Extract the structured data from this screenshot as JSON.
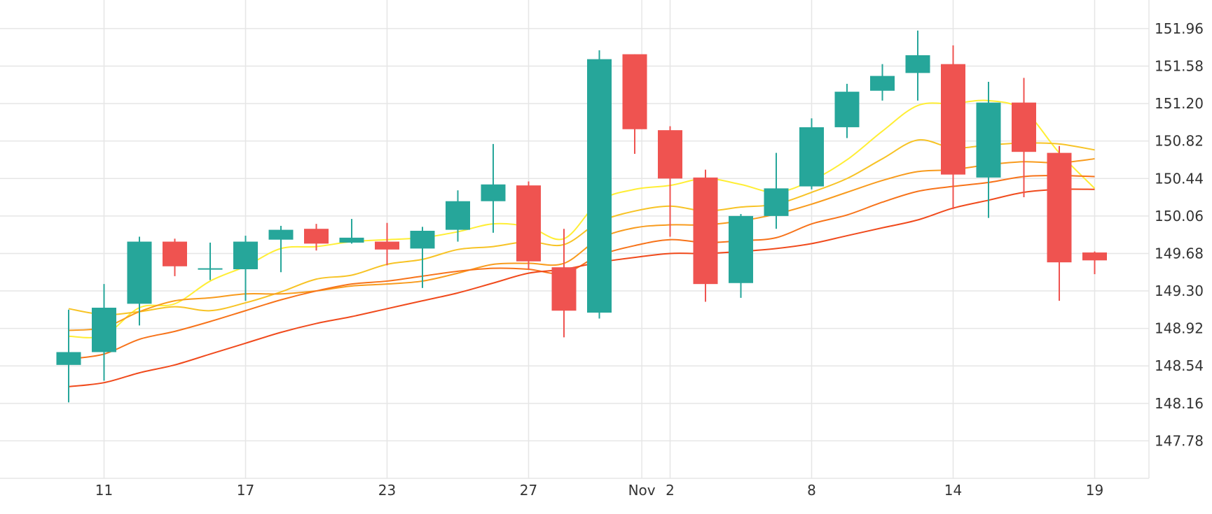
{
  "chart_data": {
    "type": "candlestick",
    "title": "",
    "xlabel": "",
    "ylabel": "",
    "ylim": [
      147.4,
      152.25
    ],
    "x_ticks": [
      {
        "label": "11",
        "index": 1
      },
      {
        "label": "17",
        "index": 5
      },
      {
        "label": "23",
        "index": 9
      },
      {
        "label": "27",
        "index": 13
      },
      {
        "label": "Nov",
        "index": 16.2
      },
      {
        "label": "2",
        "index": 17
      },
      {
        "label": "8",
        "index": 21
      },
      {
        "label": "14",
        "index": 25
      },
      {
        "label": "19",
        "index": 29
      }
    ],
    "y_ticks": [
      147.78,
      148.16,
      148.54,
      148.92,
      149.3,
      149.68,
      150.06,
      150.44,
      150.82,
      151.2,
      151.58,
      151.96
    ],
    "grid": true,
    "legend": "none",
    "colors": {
      "up": "#26a69a",
      "down": "#ef5350"
    },
    "candles": [
      {
        "o": 148.55,
        "h": 149.11,
        "l": 148.17,
        "c": 148.68
      },
      {
        "o": 148.68,
        "h": 149.37,
        "l": 148.39,
        "c": 149.13
      },
      {
        "o": 149.17,
        "h": 149.85,
        "l": 148.95,
        "c": 149.8
      },
      {
        "o": 149.8,
        "h": 149.83,
        "l": 149.45,
        "c": 149.55
      },
      {
        "o": 149.52,
        "h": 149.79,
        "l": 149.41,
        "c": 149.53
      },
      {
        "o": 149.52,
        "h": 149.86,
        "l": 149.2,
        "c": 149.8
      },
      {
        "o": 149.82,
        "h": 149.96,
        "l": 149.49,
        "c": 149.92
      },
      {
        "o": 149.93,
        "h": 149.98,
        "l": 149.71,
        "c": 149.78
      },
      {
        "o": 149.79,
        "h": 150.03,
        "l": 149.78,
        "c": 149.84
      },
      {
        "o": 149.8,
        "h": 149.99,
        "l": 149.56,
        "c": 149.72
      },
      {
        "o": 149.73,
        "h": 149.95,
        "l": 149.33,
        "c": 149.91
      },
      {
        "o": 149.92,
        "h": 150.32,
        "l": 149.8,
        "c": 150.21
      },
      {
        "o": 150.21,
        "h": 150.79,
        "l": 149.89,
        "c": 150.38
      },
      {
        "o": 150.37,
        "h": 150.41,
        "l": 149.52,
        "c": 149.6
      },
      {
        "o": 149.54,
        "h": 149.93,
        "l": 148.83,
        "c": 149.1
      },
      {
        "o": 149.08,
        "h": 151.74,
        "l": 149.02,
        "c": 151.65
      },
      {
        "o": 151.7,
        "h": 151.7,
        "l": 150.69,
        "c": 150.94
      },
      {
        "o": 150.93,
        "h": 150.97,
        "l": 149.85,
        "c": 150.44
      },
      {
        "o": 150.45,
        "h": 150.53,
        "l": 149.19,
        "c": 149.37
      },
      {
        "o": 149.38,
        "h": 150.08,
        "l": 149.23,
        "c": 150.06
      },
      {
        "o": 150.06,
        "h": 150.7,
        "l": 149.93,
        "c": 150.34
      },
      {
        "o": 150.36,
        "h": 151.05,
        "l": 150.33,
        "c": 150.96
      },
      {
        "o": 150.96,
        "h": 151.4,
        "l": 150.85,
        "c": 151.32
      },
      {
        "o": 151.33,
        "h": 151.6,
        "l": 151.23,
        "c": 151.48
      },
      {
        "o": 151.51,
        "h": 151.94,
        "l": 151.23,
        "c": 151.69
      },
      {
        "o": 151.6,
        "h": 151.79,
        "l": 150.13,
        "c": 150.48
      },
      {
        "o": 150.45,
        "h": 151.42,
        "l": 150.04,
        "c": 151.21
      },
      {
        "o": 151.21,
        "h": 151.46,
        "l": 150.25,
        "c": 150.71
      },
      {
        "o": 150.7,
        "h": 150.77,
        "l": 149.2,
        "c": 149.59
      },
      {
        "o": 149.69,
        "h": 149.7,
        "l": 149.47,
        "c": 149.61
      }
    ],
    "moving_averages": [
      {
        "color": "#ffee35",
        "values": [
          148.84,
          148.85,
          149.13,
          149.17,
          149.4,
          149.55,
          149.73,
          149.75,
          149.8,
          149.82,
          149.84,
          149.9,
          149.98,
          149.95,
          149.83,
          150.21,
          150.33,
          150.37,
          150.44,
          150.38,
          150.3,
          150.42,
          150.63,
          150.92,
          151.18,
          151.2,
          151.23,
          151.13,
          150.7,
          150.34
        ]
      },
      {
        "color": "#f7c325",
        "values": [
          149.12,
          149.06,
          149.09,
          149.14,
          149.1,
          149.18,
          149.29,
          149.42,
          149.46,
          149.57,
          149.62,
          149.72,
          149.75,
          149.8,
          149.77,
          150.0,
          150.11,
          150.16,
          150.11,
          150.15,
          150.18,
          150.3,
          150.44,
          150.64,
          150.83,
          150.75,
          150.78,
          150.8,
          150.79,
          150.73
        ]
      },
      {
        "color": "#f89b1d",
        "values": [
          148.9,
          148.93,
          149.09,
          149.2,
          149.23,
          149.27,
          149.27,
          149.3,
          149.35,
          149.37,
          149.4,
          149.48,
          149.57,
          149.58,
          149.58,
          149.83,
          149.94,
          149.97,
          149.97,
          150.01,
          150.08,
          150.18,
          150.3,
          150.42,
          150.51,
          150.53,
          150.58,
          150.61,
          150.6,
          150.64
        ]
      },
      {
        "color": "#f7731a",
        "values": [
          148.61,
          148.66,
          148.81,
          148.89,
          148.99,
          149.1,
          149.21,
          149.3,
          149.37,
          149.4,
          149.45,
          149.5,
          149.53,
          149.52,
          149.48,
          149.66,
          149.76,
          149.82,
          149.79,
          149.81,
          149.84,
          149.98,
          150.07,
          150.2,
          150.31,
          150.36,
          150.4,
          150.46,
          150.47,
          150.46
        ]
      },
      {
        "color": "#f04a1c",
        "values": [
          148.33,
          148.37,
          148.47,
          148.55,
          148.66,
          148.77,
          148.88,
          148.97,
          149.04,
          149.12,
          149.2,
          149.28,
          149.38,
          149.48,
          149.52,
          149.59,
          149.64,
          149.68,
          149.68,
          149.7,
          149.73,
          149.78,
          149.86,
          149.94,
          150.02,
          150.14,
          150.22,
          150.3,
          150.33,
          150.33
        ]
      }
    ]
  }
}
